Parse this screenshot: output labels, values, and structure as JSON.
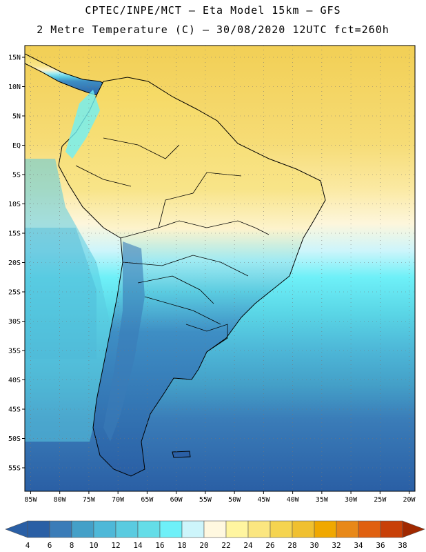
{
  "title_line1": "CPTEC/INPE/MCT –  Eta Model 15km – GFS",
  "title_line2": "2 Metre Temperature (C) – 30/08/2020 12UTC fct=260h",
  "map": {
    "lon_range": [
      -86,
      -19
    ],
    "lat_range": [
      -59,
      17
    ],
    "lat_ticks": [
      {
        "value": 15,
        "label": "15N"
      },
      {
        "value": 10,
        "label": "10N"
      },
      {
        "value": 5,
        "label": "5N"
      },
      {
        "value": 0,
        "label": "EQ"
      },
      {
        "value": -5,
        "label": "5S"
      },
      {
        "value": -10,
        "label": "10S"
      },
      {
        "value": -15,
        "label": "15S"
      },
      {
        "value": -20,
        "label": "20S"
      },
      {
        "value": -25,
        "label": "25S"
      },
      {
        "value": -30,
        "label": "30S"
      },
      {
        "value": -35,
        "label": "35S"
      },
      {
        "value": -40,
        "label": "40S"
      },
      {
        "value": -45,
        "label": "45S"
      },
      {
        "value": -50,
        "label": "50S"
      },
      {
        "value": -55,
        "label": "55S"
      }
    ],
    "lon_ticks": [
      {
        "value": -85,
        "label": "85W"
      },
      {
        "value": -80,
        "label": "80W"
      },
      {
        "value": -75,
        "label": "75W"
      },
      {
        "value": -70,
        "label": "70W"
      },
      {
        "value": -65,
        "label": "65W"
      },
      {
        "value": -60,
        "label": "60W"
      },
      {
        "value": -55,
        "label": "55W"
      },
      {
        "value": -50,
        "label": "50W"
      },
      {
        "value": -45,
        "label": "45W"
      },
      {
        "value": -40,
        "label": "40W"
      },
      {
        "value": -35,
        "label": "35W"
      },
      {
        "value": -30,
        "label": "30W"
      },
      {
        "value": -25,
        "label": "25W"
      },
      {
        "value": -20,
        "label": "20W"
      }
    ],
    "grid": "dotted"
  },
  "colorbar": {
    "values": [
      4,
      6,
      8,
      10,
      12,
      14,
      16,
      18,
      20,
      22,
      24,
      26,
      28,
      30,
      32,
      34,
      36,
      38
    ],
    "colors": [
      "#2a5fa5",
      "#3a7cb8",
      "#44a0c8",
      "#4eb8d8",
      "#5acbe0",
      "#64dde8",
      "#6ef0f8",
      "#cdf5fb",
      "#fff8e0",
      "#fff5a0",
      "#fbe680",
      "#f5d450",
      "#f0c030",
      "#f0a800",
      "#e88818",
      "#e06010",
      "#c84008",
      "#a02800"
    ]
  }
}
